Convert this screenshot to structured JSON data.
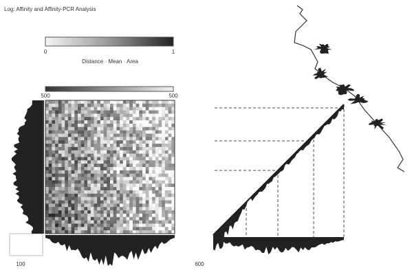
{
  "header": {
    "title": "Log: Affinity and Affinity-PCR Analysis"
  },
  "colorbar": {
    "min_label": "0",
    "max_label": "1",
    "caption": "Distance · Mean · Area"
  },
  "heatmap": {
    "top_left_label": "500",
    "top_right_label": "500",
    "corner_label": "100"
  },
  "diagonal": {
    "corner_label": "600"
  }
}
